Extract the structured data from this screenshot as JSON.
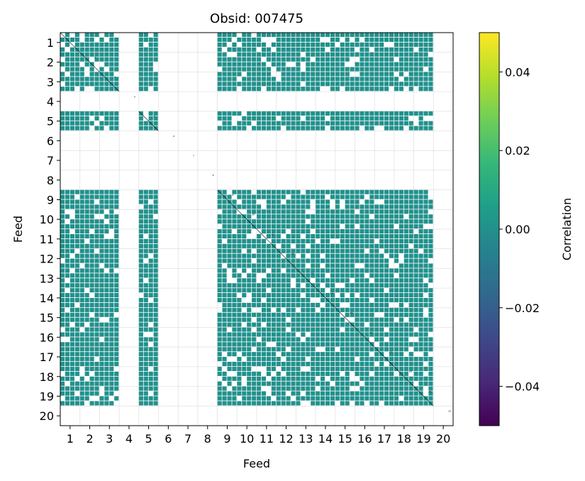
{
  "chart_data": {
    "type": "heatmap",
    "title": "Obsid: 007475",
    "xlabel": "Feed",
    "ylabel": "Feed",
    "x_ticks": [
      "1",
      "2",
      "3",
      "4",
      "5",
      "6",
      "7",
      "8",
      "9",
      "10",
      "11",
      "12",
      "13",
      "14",
      "15",
      "16",
      "17",
      "18",
      "19",
      "20"
    ],
    "y_ticks": [
      "1",
      "2",
      "3",
      "4",
      "5",
      "6",
      "7",
      "8",
      "9",
      "10",
      "11",
      "12",
      "13",
      "14",
      "15",
      "16",
      "17",
      "18",
      "19",
      "20"
    ],
    "grid": true,
    "n_feeds": 20,
    "sub_cells_per_feed": 4,
    "colormap": "viridis",
    "cell_color": "#21918c",
    "colorbar": {
      "label": "Correlation",
      "vmin": -0.05,
      "vmax": 0.05,
      "ticks": [
        "0.04",
        "0.02",
        "0.00",
        "−0.02",
        "−0.04"
      ],
      "tick_values": [
        0.04,
        0.02,
        0.0,
        -0.02,
        -0.04
      ],
      "stops": [
        "#440154",
        "#482878",
        "#3e4989",
        "#31688e",
        "#26828e",
        "#1f9e89",
        "#35b779",
        "#6ece58",
        "#b5de2b",
        "#fde725"
      ]
    },
    "active_feeds": [
      1,
      2,
      3,
      5,
      9,
      10,
      11,
      12,
      13,
      14,
      15,
      16,
      17,
      18,
      19
    ],
    "missing_feeds": [
      4,
      6,
      7,
      8,
      20
    ],
    "values_note": "all visible correlations are approximately 0.00; missing feeds appear blank (white)",
    "diagonal_labels": [
      "1",
      "2",
      "3",
      "4",
      "5",
      "6",
      "7",
      "8",
      "9",
      "10",
      "11",
      "12",
      "13",
      "14",
      "15",
      "16",
      "17",
      "18",
      "19",
      "20"
    ]
  }
}
